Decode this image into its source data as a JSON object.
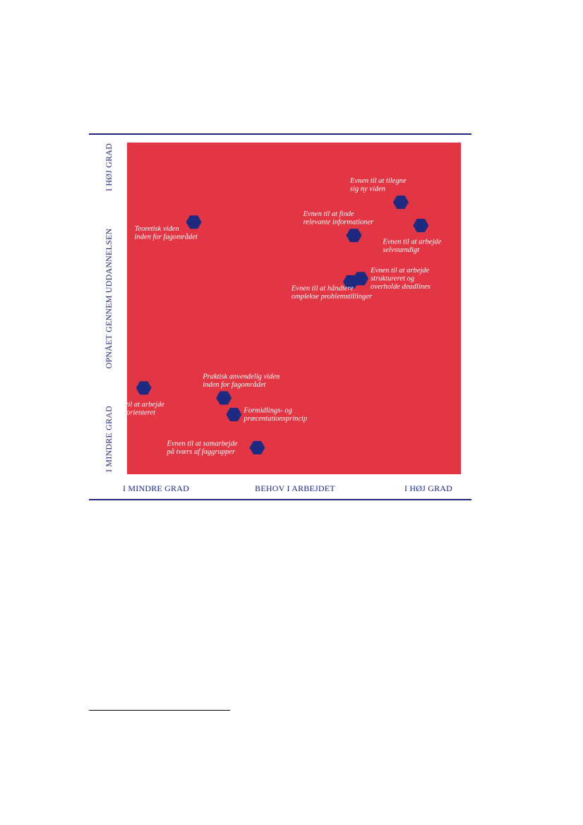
{
  "chart_data": {
    "type": "scatter",
    "x_axis": {
      "title": "BEHOV I ARBEJDET",
      "low_label": "I MINDRE GRAD",
      "high_label": "I HØJ GRAD",
      "range": [
        0,
        100
      ]
    },
    "y_axis": {
      "title": "OPNÅET GENNEM UDDANNELSEN",
      "low_label": "I MINDRE GRAD",
      "high_label": "I HØJ GRAD",
      "range": [
        0,
        100
      ]
    },
    "colors": {
      "background": "#e33645",
      "marker": "#1e2a80",
      "axis_text": "#1e2a80",
      "label_text": "#ffffff"
    },
    "marker": "hexagon",
    "points": [
      {
        "lines": [
          "Evnen til at tilegne",
          "sig ny viden"
        ],
        "x": 82,
        "y": 82,
        "label_side": "above-left"
      },
      {
        "lines": [
          "Evnen til at arbejde",
          "selvstændigt"
        ],
        "x": 88,
        "y": 75,
        "label_side": "below"
      },
      {
        "lines": [
          "Evnen til at finde",
          "relevante informationer"
        ],
        "x": 68,
        "y": 72,
        "label_side": "above-left"
      },
      {
        "lines": [
          "Teoretisk viden",
          "inden for fagområdet"
        ],
        "x": 20,
        "y": 76,
        "label_side": "below-left"
      },
      {
        "lines": [
          "Evnen til at arbejde",
          "struktureret og",
          "overholde deadlines"
        ],
        "x": 70,
        "y": 59,
        "label_side": "right"
      },
      {
        "lines": [
          "Evnen til at håndtere",
          "omplekse problemstillinger"
        ],
        "x": 67,
        "y": 58,
        "label_side": "below-left"
      },
      {
        "lines": [
          "Praktisk anvendelig viden",
          "inden for fagområdet"
        ],
        "x": 29,
        "y": 23,
        "label_side": "above"
      },
      {
        "lines": [
          "Evnen til at arbejde",
          "projektorienteret"
        ],
        "x": 5,
        "y": 26,
        "label_side": "below"
      },
      {
        "lines": [
          "Formidlings- og",
          "præcentationsprincip"
        ],
        "x": 32,
        "y": 18,
        "label_side": "right"
      },
      {
        "lines": [
          "Evnen til at samarbejde",
          "på tværs af faggrupper"
        ],
        "x": 39,
        "y": 8,
        "label_side": "left"
      }
    ]
  }
}
